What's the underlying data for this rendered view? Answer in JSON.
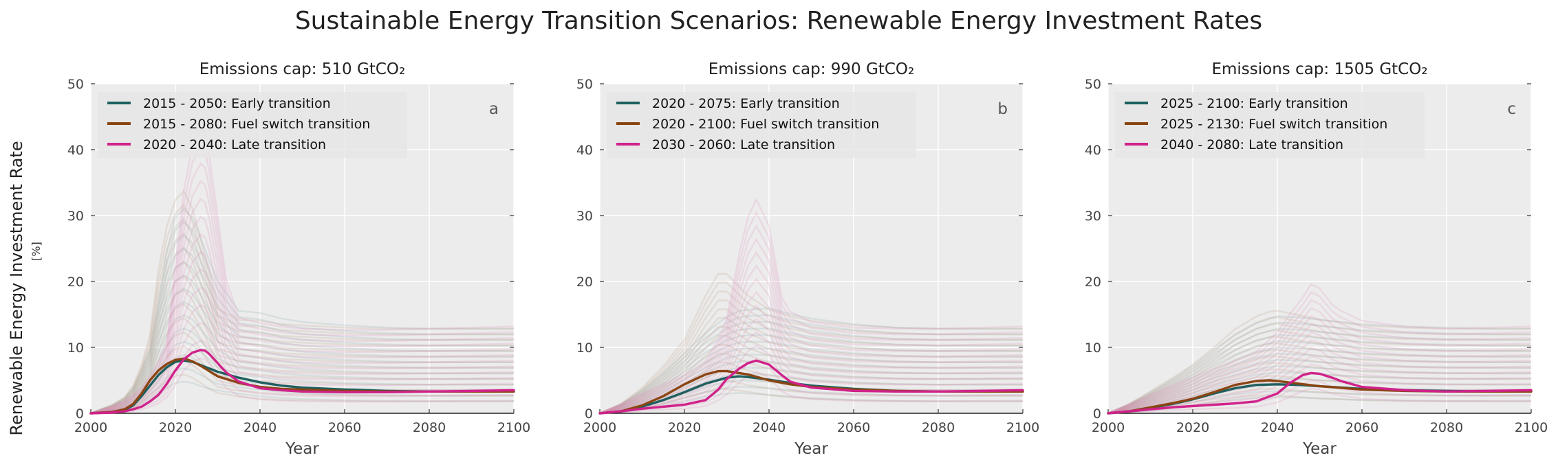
{
  "figure": {
    "title": "Sustainable Energy Transition Scenarios: Renewable Energy Investment Rates",
    "ylabel": "Renewable Energy Investment Rate",
    "yunit": "[%]"
  },
  "colors": {
    "early": "#1e5f5f",
    "fuel": "#8b4513",
    "late": "#d0228a",
    "background": "#ececec",
    "grid": "#ffffff"
  },
  "chart_data": [
    {
      "type": "line",
      "title": "Emissions cap: 510 GtCO₂",
      "panel_label": "a",
      "xlabel": "Year",
      "xlim": [
        2000,
        2100
      ],
      "ylim": [
        0,
        50
      ],
      "x_ticks": [
        2000,
        2020,
        2040,
        2060,
        2080,
        2100
      ],
      "y_ticks": [
        0,
        10,
        20,
        30,
        40,
        50
      ],
      "grid": true,
      "legend_position": "top-left",
      "series": [
        {
          "name": "2015 - 2050: Early transition",
          "color": "#1e5f5f",
          "x": [
            2000,
            2005,
            2008,
            2010,
            2012,
            2014,
            2016,
            2018,
            2020,
            2022,
            2024,
            2026,
            2028,
            2030,
            2035,
            2040,
            2045,
            2050,
            2060,
            2070,
            2080,
            2090,
            2100
          ],
          "y": [
            0,
            0.2,
            0.5,
            1.2,
            2.6,
            4.2,
            5.8,
            7.0,
            7.8,
            8.0,
            7.8,
            7.3,
            6.8,
            6.3,
            5.4,
            4.7,
            4.2,
            3.9,
            3.6,
            3.4,
            3.3,
            3.3,
            3.3
          ]
        },
        {
          "name": "2015 - 2080: Fuel switch transition",
          "color": "#8b4513",
          "x": [
            2000,
            2005,
            2008,
            2010,
            2012,
            2014,
            2016,
            2018,
            2020,
            2022,
            2024,
            2026,
            2028,
            2030,
            2035,
            2040,
            2045,
            2050,
            2060,
            2070,
            2080,
            2090,
            2100
          ],
          "y": [
            0,
            0.2,
            0.6,
            1.4,
            3.0,
            5.0,
            6.5,
            7.5,
            8.1,
            8.3,
            7.9,
            7.2,
            6.4,
            5.6,
            4.6,
            4.0,
            3.7,
            3.6,
            3.4,
            3.3,
            3.3,
            3.3,
            3.3
          ]
        },
        {
          "name": "2020 - 2040: Late transition",
          "color": "#d0228a",
          "x": [
            2000,
            2005,
            2008,
            2010,
            2012,
            2014,
            2016,
            2018,
            2020,
            2022,
            2024,
            2026,
            2027,
            2028,
            2030,
            2032,
            2035,
            2040,
            2045,
            2050,
            2060,
            2070,
            2080,
            2090,
            2100
          ],
          "y": [
            0,
            0.1,
            0.3,
            0.6,
            1.0,
            1.8,
            2.8,
            4.5,
            6.5,
            8.2,
            9.2,
            9.6,
            9.5,
            9.0,
            7.6,
            6.2,
            4.8,
            3.8,
            3.5,
            3.3,
            3.2,
            3.2,
            3.3,
            3.4,
            3.5
          ]
        }
      ]
    },
    {
      "type": "line",
      "title": "Emissions cap: 990 GtCO₂",
      "panel_label": "b",
      "xlabel": "Year",
      "xlim": [
        2000,
        2100
      ],
      "ylim": [
        0,
        50
      ],
      "x_ticks": [
        2000,
        2020,
        2040,
        2060,
        2080,
        2100
      ],
      "y_ticks": [
        0,
        10,
        20,
        30,
        40,
        50
      ],
      "grid": true,
      "legend_position": "top-left",
      "series": [
        {
          "name": "2020 - 2075: Early transition",
          "color": "#1e5f5f",
          "x": [
            2000,
            2005,
            2010,
            2015,
            2020,
            2025,
            2030,
            2033,
            2035,
            2040,
            2045,
            2050,
            2060,
            2070,
            2080,
            2090,
            2100
          ],
          "y": [
            0,
            0.3,
            1.0,
            2.0,
            3.2,
            4.5,
            5.4,
            5.6,
            5.5,
            5.1,
            4.6,
            4.2,
            3.7,
            3.4,
            3.3,
            3.3,
            3.3
          ]
        },
        {
          "name": "2020 - 2100: Fuel switch transition",
          "color": "#8b4513",
          "x": [
            2000,
            2005,
            2010,
            2015,
            2020,
            2025,
            2028,
            2030,
            2035,
            2040,
            2045,
            2050,
            2060,
            2070,
            2080,
            2090,
            2100
          ],
          "y": [
            0,
            0.3,
            1.2,
            2.6,
            4.4,
            5.9,
            6.4,
            6.4,
            5.9,
            5.0,
            4.4,
            4.0,
            3.6,
            3.4,
            3.3,
            3.3,
            3.3
          ]
        },
        {
          "name": "2030 - 2060: Late transition",
          "color": "#d0228a",
          "x": [
            2000,
            2005,
            2010,
            2015,
            2020,
            2025,
            2028,
            2030,
            2033,
            2035,
            2037,
            2040,
            2043,
            2045,
            2050,
            2060,
            2070,
            2080,
            2090,
            2100
          ],
          "y": [
            0,
            0.3,
            0.7,
            1.0,
            1.3,
            2.0,
            3.6,
            5.2,
            6.8,
            7.6,
            8.0,
            7.4,
            5.8,
            4.8,
            3.9,
            3.4,
            3.3,
            3.3,
            3.4,
            3.5
          ]
        }
      ]
    },
    {
      "type": "line",
      "title": "Emissions cap: 1505 GtCO₂",
      "panel_label": "c",
      "xlabel": "Year",
      "xlim": [
        2000,
        2100
      ],
      "ylim": [
        0,
        50
      ],
      "x_ticks": [
        2000,
        2020,
        2040,
        2060,
        2080,
        2100
      ],
      "y_ticks": [
        0,
        10,
        20,
        30,
        40,
        50
      ],
      "grid": true,
      "legend_position": "top-left",
      "series": [
        {
          "name": "2025 - 2100: Early transition",
          "color": "#1e5f5f",
          "x": [
            2000,
            2005,
            2010,
            2015,
            2020,
            2025,
            2030,
            2035,
            2040,
            2045,
            2050,
            2060,
            2070,
            2080,
            2090,
            2100
          ],
          "y": [
            0,
            0.3,
            0.8,
            1.4,
            2.1,
            3.0,
            3.8,
            4.3,
            4.4,
            4.3,
            4.1,
            3.7,
            3.5,
            3.4,
            3.3,
            3.3
          ]
        },
        {
          "name": "2025 - 2130: Fuel switch transition",
          "color": "#8b4513",
          "x": [
            2000,
            2005,
            2010,
            2015,
            2020,
            2025,
            2030,
            2035,
            2038,
            2040,
            2045,
            2050,
            2060,
            2070,
            2080,
            2090,
            2100
          ],
          "y": [
            0,
            0.3,
            0.9,
            1.5,
            2.2,
            3.2,
            4.3,
            4.9,
            5.0,
            4.9,
            4.5,
            4.1,
            3.6,
            3.4,
            3.3,
            3.3,
            3.3
          ]
        },
        {
          "name": "2040 - 2080: Late transition",
          "color": "#d0228a",
          "x": [
            2000,
            2005,
            2010,
            2015,
            2020,
            2025,
            2030,
            2035,
            2040,
            2043,
            2046,
            2048,
            2050,
            2053,
            2055,
            2060,
            2070,
            2080,
            2090,
            2100
          ],
          "y": [
            0,
            0.3,
            0.6,
            0.9,
            1.1,
            1.3,
            1.5,
            1.8,
            3.0,
            4.6,
            5.8,
            6.1,
            6.0,
            5.4,
            4.9,
            4.0,
            3.5,
            3.3,
            3.4,
            3.5
          ]
        }
      ]
    }
  ]
}
